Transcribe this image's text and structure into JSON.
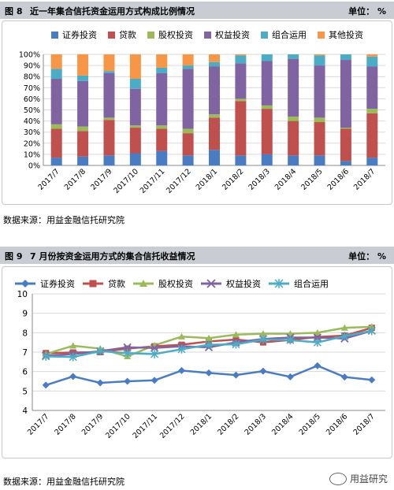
{
  "fig1": {
    "num": "图 8",
    "title": "近一年集合信托资金运用方式构成比例情况",
    "unit": "单位： %",
    "source": "数据来源：用益金融信托研究院"
  },
  "fig2": {
    "num": "图 9",
    "title": "7 月份按资金运用方式的集合信托收益情况",
    "unit": "单位： %",
    "source": "数据来源：用益金融信托研究院"
  },
  "watermark": "用益研究",
  "chart_data": [
    {
      "type": "bar",
      "stacked": true,
      "title": "近一年集合信托资金运用方式构成比例情况",
      "categories": [
        "2017/7",
        "2017/8",
        "2017/9",
        "2017/10",
        "2017/11",
        "2017/12",
        "2018/1",
        "2018/2",
        "2018/3",
        "2018/4",
        "2018/5",
        "2018/6",
        "2018/7"
      ],
      "ylim": [
        0,
        100
      ],
      "yticks": [
        "0%",
        "10%",
        "20%",
        "30%",
        "40%",
        "50%",
        "60%",
        "70%",
        "80%",
        "90%",
        "100%"
      ],
      "legend_position": "top",
      "grid": true,
      "series": [
        {
          "name": "证券投资",
          "color": "#4a7cc4",
          "values": [
            7,
            8,
            9,
            11,
            13,
            9,
            14,
            9,
            10,
            9,
            9,
            4,
            7
          ]
        },
        {
          "name": "贷款",
          "color": "#c0504d",
          "values": [
            26,
            23,
            32,
            23,
            20,
            20,
            29,
            49,
            41,
            31,
            30,
            29,
            40
          ]
        },
        {
          "name": "股权投资",
          "color": "#9bbb59",
          "values": [
            4,
            4,
            2,
            2,
            3,
            4,
            3,
            2,
            3,
            4,
            4,
            1,
            4
          ]
        },
        {
          "name": "权益投资",
          "color": "#8064a2",
          "values": [
            41,
            41,
            40,
            33,
            47,
            54,
            43,
            32,
            40,
            52,
            47,
            61,
            38
          ]
        },
        {
          "name": "组合运用",
          "color": "#4bacc6",
          "values": [
            9,
            5,
            2,
            9,
            5,
            3,
            4,
            7,
            6,
            4,
            9,
            5,
            9
          ]
        },
        {
          "name": "其他投资",
          "color": "#f79646",
          "values": [
            13,
            19,
            15,
            22,
            12,
            10,
            7,
            1,
            0,
            0,
            1,
            0,
            2
          ]
        }
      ]
    },
    {
      "type": "line",
      "title": "7 月份按资金运用方式的集合信托收益情况",
      "categories": [
        "2017/7",
        "2017/8",
        "2017/9",
        "2017/10",
        "2017/11",
        "2017/12",
        "2018/1",
        "2018/2",
        "2018/3",
        "2018/4",
        "2018/5",
        "2018/6",
        "2018/7"
      ],
      "ylim": [
        4,
        10
      ],
      "yticks": [
        "4",
        "5",
        "6",
        "7",
        "8",
        "9",
        "10"
      ],
      "legend_position": "top",
      "grid": true,
      "series": [
        {
          "name": "证券投资",
          "color": "#4a7cc4",
          "marker": "diamond",
          "values": [
            5.3,
            5.75,
            5.42,
            5.5,
            5.55,
            6.05,
            5.93,
            5.82,
            6.02,
            5.73,
            6.3,
            5.72,
            5.57
          ]
        },
        {
          "name": "贷款",
          "color": "#c0504d",
          "marker": "square",
          "values": [
            6.95,
            6.98,
            7.0,
            7.18,
            7.3,
            7.38,
            7.55,
            7.65,
            7.5,
            7.63,
            7.78,
            7.85,
            8.25
          ]
        },
        {
          "name": "股权投资",
          "color": "#9bbb59",
          "marker": "triangle",
          "values": [
            6.9,
            7.33,
            7.18,
            6.78,
            7.35,
            7.8,
            7.72,
            7.9,
            7.95,
            7.95,
            8.0,
            8.25,
            8.3
          ]
        },
        {
          "name": "权益投资",
          "color": "#8064a2",
          "marker": "x",
          "values": [
            6.82,
            6.9,
            7.05,
            7.25,
            7.22,
            7.3,
            7.25,
            7.5,
            7.68,
            7.75,
            7.75,
            7.7,
            8.1
          ]
        },
        {
          "name": "组合运用",
          "color": "#4bacc6",
          "marker": "star",
          "values": [
            6.78,
            6.75,
            7.05,
            6.95,
            6.9,
            7.15,
            7.38,
            7.4,
            7.65,
            7.62,
            7.5,
            7.82,
            8.1
          ]
        }
      ]
    }
  ]
}
